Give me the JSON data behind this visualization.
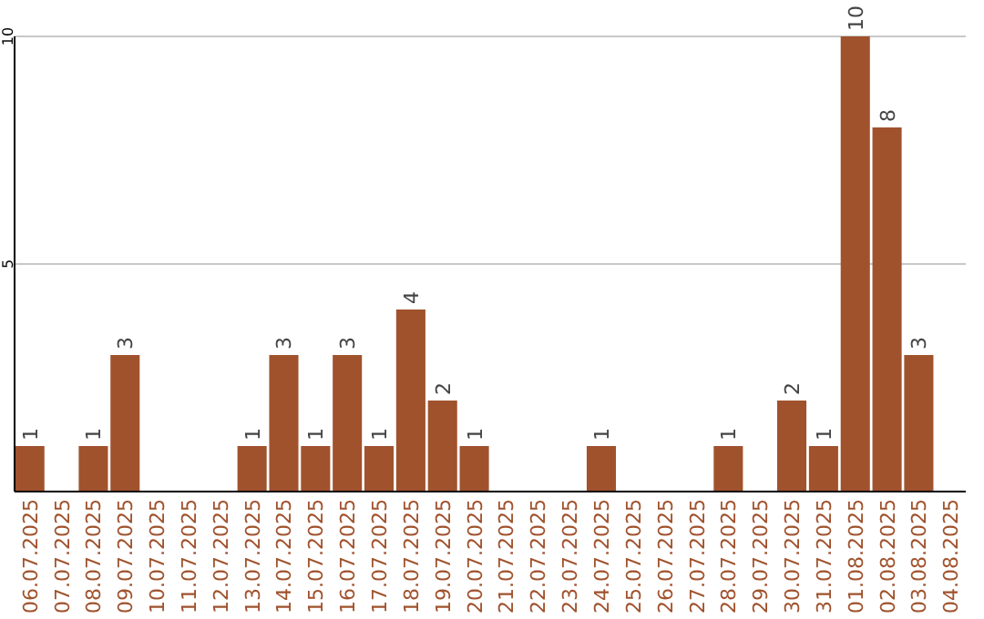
{
  "chart_data": {
    "type": "bar",
    "categories": [
      "06.07.2025",
      "07.07.2025",
      "08.07.2025",
      "09.07.2025",
      "10.07.2025",
      "11.07.2025",
      "12.07.2025",
      "13.07.2025",
      "14.07.2025",
      "15.07.2025",
      "16.07.2025",
      "17.07.2025",
      "18.07.2025",
      "19.07.2025",
      "20.07.2025",
      "21.07.2025",
      "22.07.2025",
      "23.07.2025",
      "24.07.2025",
      "25.07.2025",
      "26.07.2025",
      "27.07.2025",
      "28.07.2025",
      "29.07.2025",
      "30.07.2025",
      "31.07.2025",
      "01.08.2025",
      "02.08.2025",
      "03.08.2025",
      "04.08.2025"
    ],
    "values": [
      1,
      null,
      1,
      3,
      null,
      null,
      null,
      1,
      3,
      1,
      3,
      1,
      4,
      2,
      1,
      null,
      null,
      null,
      1,
      null,
      null,
      null,
      1,
      null,
      2,
      1,
      10,
      8,
      3,
      null
    ],
    "color": "#a0522d",
    "ylim": [
      0,
      10
    ],
    "yticks": [
      5,
      10
    ],
    "grid": "y",
    "data_labels": true
  }
}
